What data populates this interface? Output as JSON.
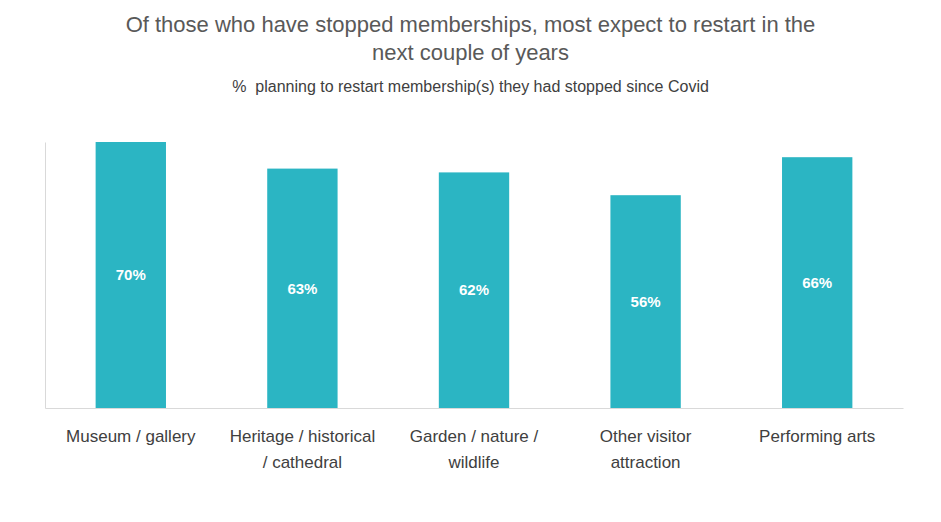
{
  "chart_data": {
    "type": "bar",
    "title": "Of those who have stopped memberships, most expect to restart in the next couple of years",
    "subtitle": "%  planning to restart membership(s) they had stopped since Covid",
    "categories": [
      "Museum / gallery",
      "Heritage / historical / cathedral",
      "Garden / nature / wildlife",
      "Other visitor attraction",
      "Performing arts"
    ],
    "values": [
      70,
      63,
      62,
      56,
      66
    ],
    "value_labels": [
      "70%",
      "63%",
      "62%",
      "56%",
      "66%"
    ],
    "color": "#2bb5c3",
    "ylim": [
      0,
      70
    ],
    "data_labels": true,
    "tick_labels": "x",
    "grid": false
  }
}
